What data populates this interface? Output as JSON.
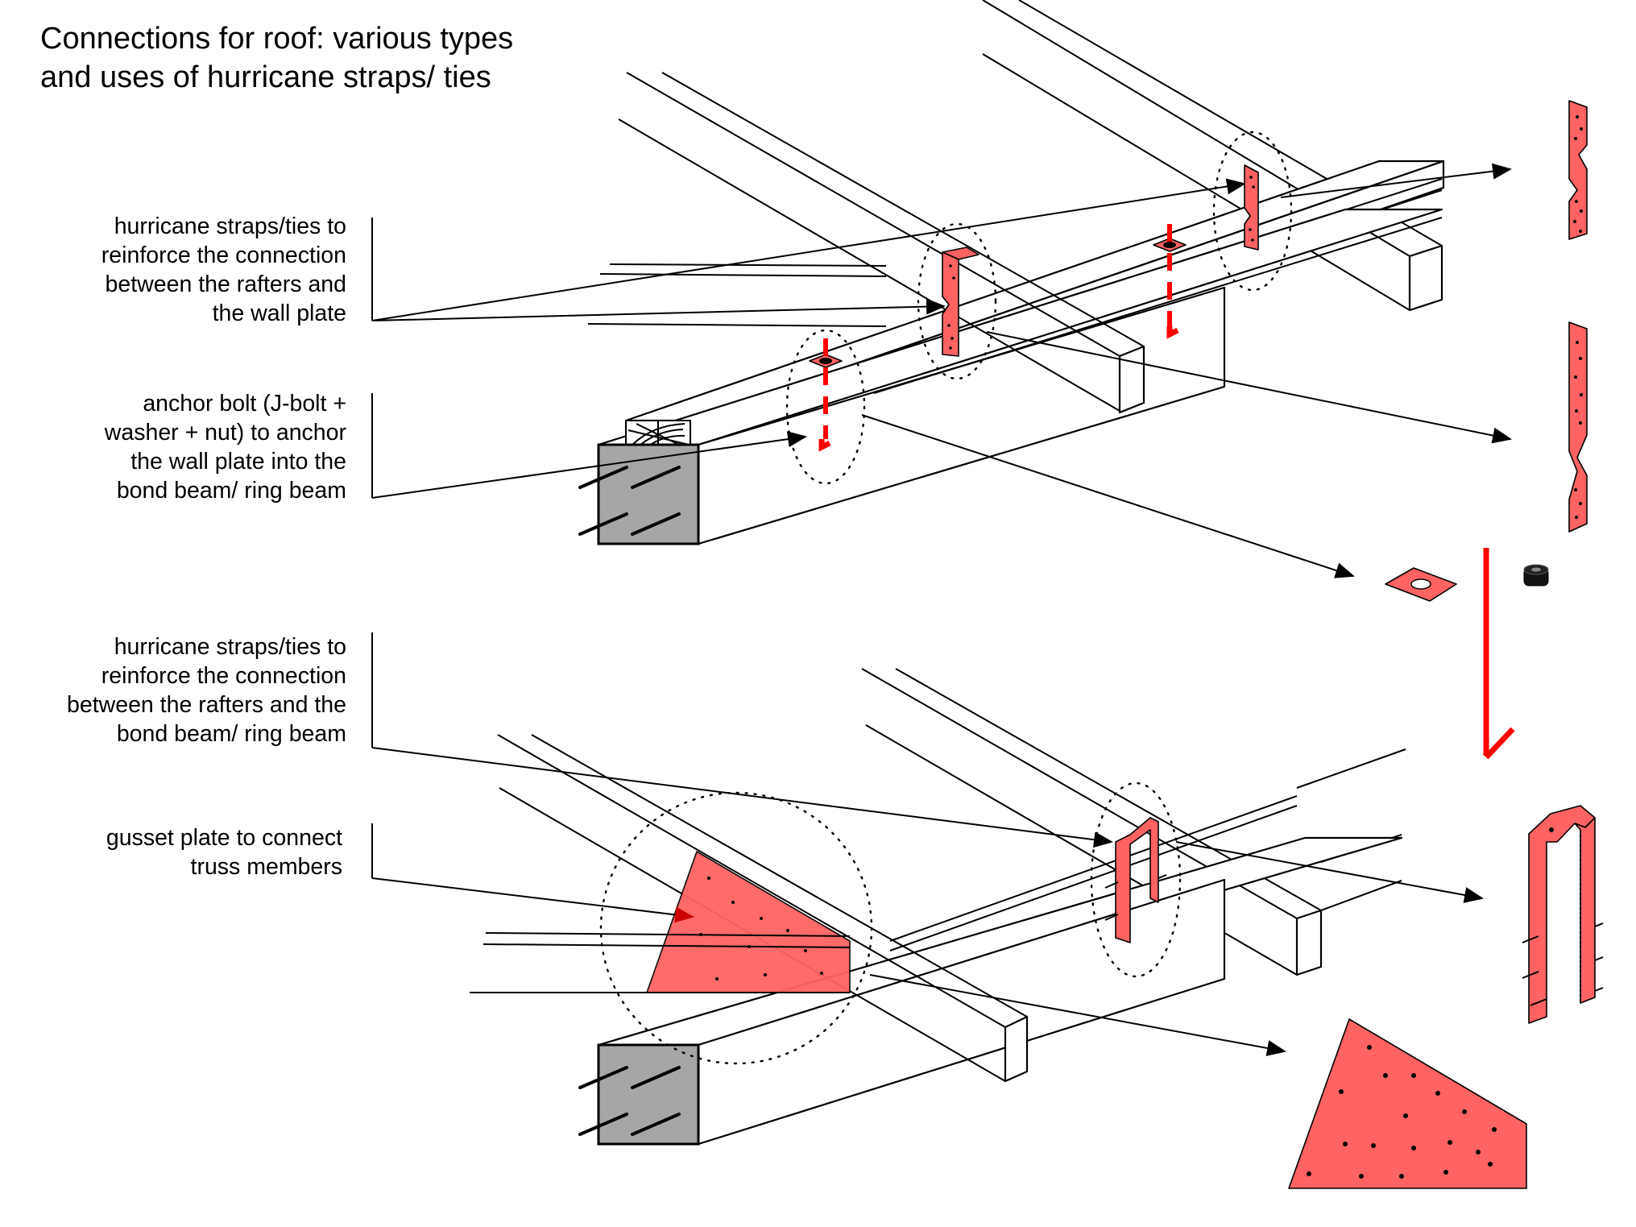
{
  "title": {
    "line1": "Connections for roof: various types",
    "line2": "and uses of hurricane straps/ ties"
  },
  "labels": {
    "straps_wall_plate": [
      "hurricane straps/ties to",
      "reinforce the connection",
      "between the rafters and",
      "the wall plate"
    ],
    "anchor_bolt": [
      "anchor bolt (J-bolt +",
      "washer + nut) to anchor",
      "the wall plate into the",
      "bond beam/ ring beam"
    ],
    "straps_bond_beam": [
      "hurricane straps/ties to",
      "reinforce the connection",
      "between the rafters and the",
      "bond beam/ ring beam"
    ],
    "gusset_plate": [
      "gusset plate to connect",
      "truss members"
    ]
  },
  "colors": {
    "strap_fill": "#ff6363",
    "bolt": "#ff0000",
    "concrete": "#a6a6a6",
    "line": "#000000"
  },
  "icons": {
    "strap": "hurricane-strap-icon",
    "washer": "washer-icon",
    "nut": "nut-icon",
    "j_bolt": "j-bolt-icon",
    "gusset": "gusset-plate-icon"
  }
}
